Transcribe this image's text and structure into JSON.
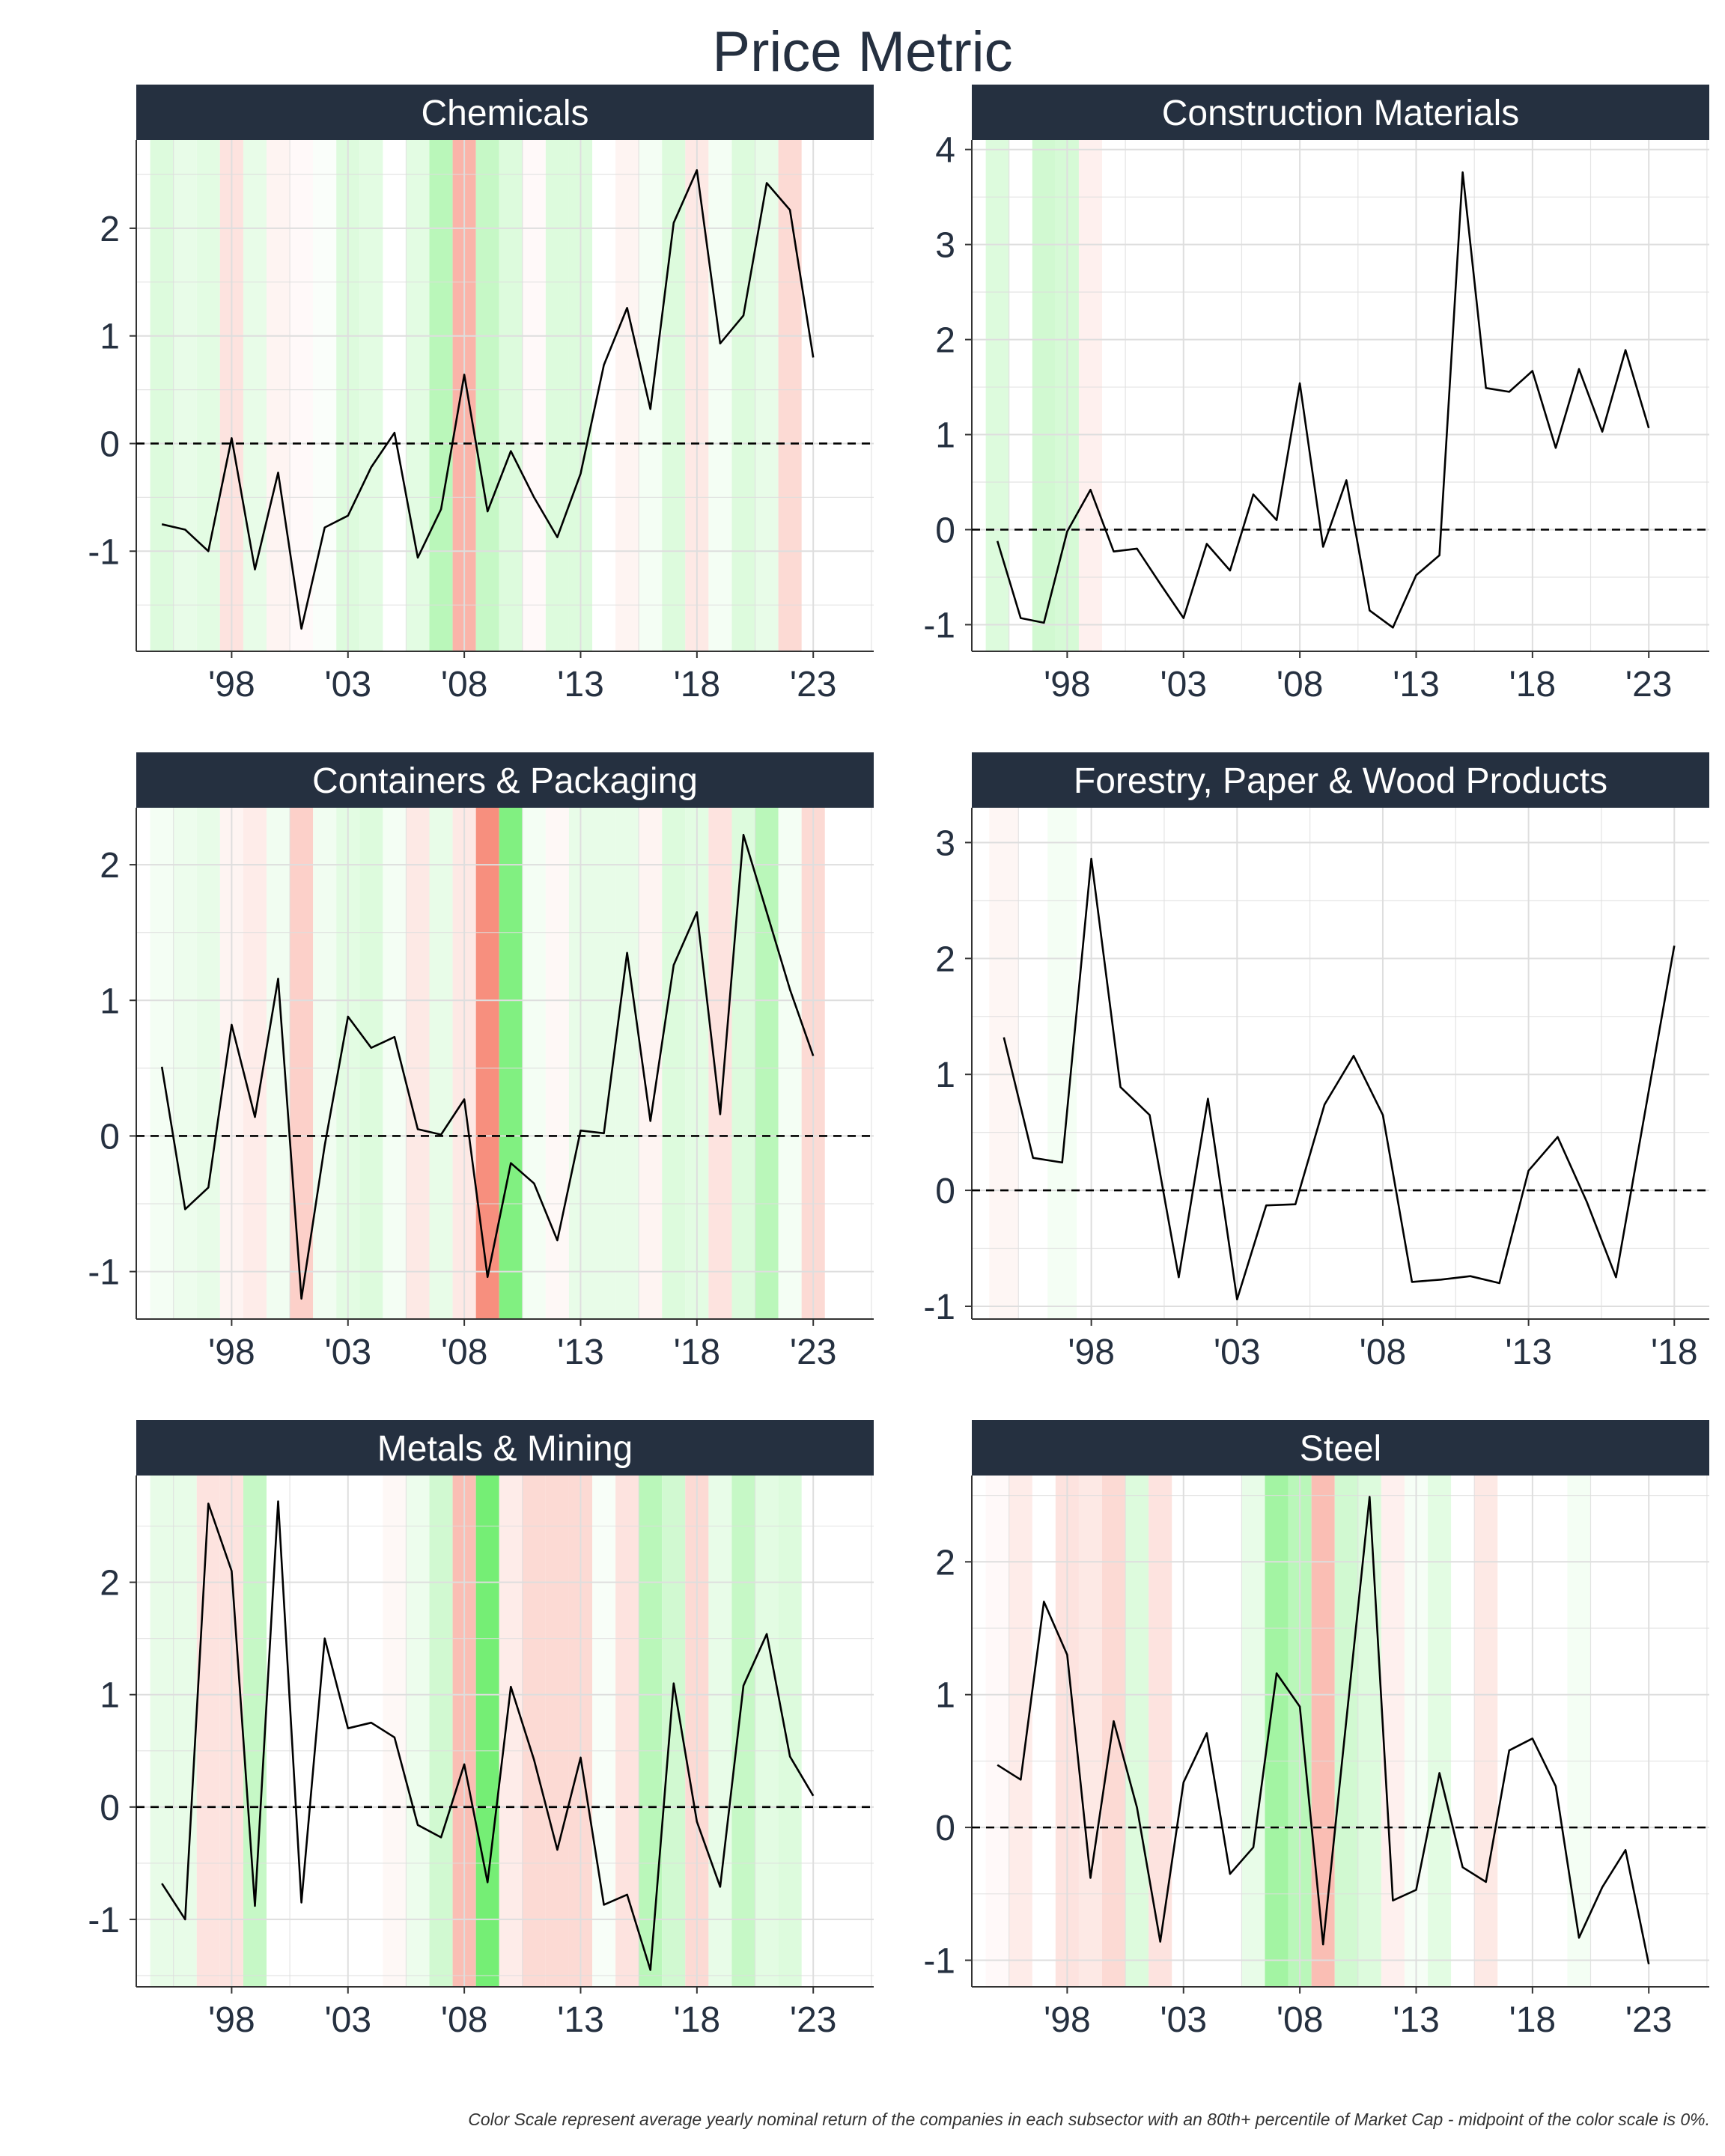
{
  "title": "Price Metric",
  "caption": "Color Scale represent average yearly nominal return of the companies in each subsector with an 80th+ percentile of Market Cap - midpoint of the color scale is 0%.",
  "colors": {
    "strip_bg": "#253040",
    "strip_text": "#ffffff",
    "line": "#000000",
    "grid": "#dedede",
    "axis_text": "#253040",
    "positive": "#00e000",
    "negative": "#f03010"
  },
  "chart_data": [
    {
      "type": "line",
      "title": "Chemicals",
      "xlim": [
        1993.9,
        2025.6
      ],
      "ylim": [
        -1.93,
        2.82
      ],
      "yticks": [
        -1,
        0,
        1,
        2
      ],
      "ytick_labels": [
        "-1",
        "0",
        "1",
        "2"
      ],
      "xticks": [
        1998,
        2003,
        2008,
        2013,
        2018,
        2023
      ],
      "xtick_labels": [
        "'98",
        "'03",
        "'08",
        "'13",
        "'18",
        "'23"
      ],
      "x": [
        1995,
        1996,
        1997,
        1998,
        1999,
        2000,
        2001,
        2002,
        2003,
        2004,
        2005,
        2006,
        2007,
        2008,
        2009,
        2010,
        2011,
        2012,
        2013,
        2014,
        2015,
        2016,
        2017,
        2018,
        2019,
        2020,
        2021,
        2022,
        2023
      ],
      "y": [
        -0.75,
        -0.8,
        -1.0,
        0.05,
        -1.17,
        -0.27,
        -1.72,
        -0.78,
        -0.67,
        -0.22,
        0.1,
        -1.06,
        -0.61,
        0.64,
        -0.63,
        -0.07,
        -0.5,
        -0.87,
        -0.28,
        0.73,
        1.26,
        0.32,
        2.05,
        2.54,
        0.93,
        1.19,
        2.42,
        2.17,
        0.8
      ],
      "band_returns": [
        0.15,
        0.1,
        0.12,
        -0.15,
        0.1,
        -0.06,
        -0.03,
        0.02,
        0.15,
        0.12,
        0.0,
        0.12,
        0.3,
        -0.4,
        0.25,
        0.15,
        -0.03,
        0.15,
        0.15,
        0.0,
        -0.06,
        0.05,
        0.15,
        -0.12,
        0.05,
        0.15,
        0.1,
        -0.2,
        0.0
      ]
    },
    {
      "type": "line",
      "title": "Construction Materials",
      "xlim": [
        1993.9,
        2025.6
      ],
      "ylim": [
        -1.28,
        4.1
      ],
      "yticks": [
        -1,
        0,
        1,
        2,
        3,
        4
      ],
      "ytick_labels": [
        "-1",
        "0",
        "1",
        "2",
        "3",
        "4"
      ],
      "xticks": [
        1998,
        2003,
        2008,
        2013,
        2018,
        2023
      ],
      "xtick_labels": [
        "'98",
        "'03",
        "'08",
        "'13",
        "'18",
        "'23"
      ],
      "x": [
        1995,
        1996,
        1997,
        1998,
        1999,
        2000,
        2001,
        2002,
        2003,
        2004,
        2005,
        2006,
        2007,
        2008,
        2009,
        2010,
        2011,
        2012,
        2013,
        2014,
        2015,
        2016,
        2017,
        2018,
        2019,
        2020,
        2021,
        2022,
        2023
      ],
      "y": [
        -0.12,
        -0.93,
        -0.98,
        -0.02,
        0.42,
        -0.23,
        -0.2,
        -0.57,
        -0.93,
        -0.15,
        -0.43,
        0.37,
        0.1,
        1.54,
        -0.18,
        0.52,
        -0.85,
        -1.03,
        -0.48,
        -0.27,
        3.76,
        1.49,
        1.45,
        1.67,
        0.86,
        1.69,
        1.03,
        1.89,
        1.07
      ],
      "band_returns": [
        0.15,
        0.0,
        0.2,
        0.18,
        -0.08,
        0,
        0,
        0,
        0,
        0,
        0,
        0,
        0,
        0,
        0,
        0,
        0,
        0,
        0,
        0,
        0,
        0,
        0,
        0,
        0,
        0,
        0,
        0,
        0
      ]
    },
    {
      "type": "line",
      "title": "Containers & Packaging",
      "xlim": [
        1993.9,
        2025.6
      ],
      "ylim": [
        -1.35,
        2.42
      ],
      "yticks": [
        -1,
        0,
        1,
        2
      ],
      "ytick_labels": [
        "-1",
        "0",
        "1",
        "2"
      ],
      "xticks": [
        1998,
        2003,
        2008,
        2013,
        2018,
        2023
      ],
      "xtick_labels": [
        "'98",
        "'03",
        "'08",
        "'13",
        "'18",
        "'23"
      ],
      "x": [
        1995,
        1996,
        1997,
        1998,
        1999,
        2000,
        2001,
        2002,
        2003,
        2004,
        2005,
        2006,
        2007,
        2008,
        2009,
        2010,
        2011,
        2012,
        2013,
        2014,
        2015,
        2016,
        2017,
        2018,
        2019,
        2020,
        2021,
        2022,
        2023
      ],
      "y": [
        0.51,
        -0.54,
        -0.38,
        0.82,
        0.14,
        1.16,
        -1.2,
        -0.07,
        0.88,
        0.65,
        0.73,
        0.05,
        0.01,
        0.27,
        -1.04,
        -0.2,
        -0.35,
        -0.77,
        0.04,
        0.02,
        1.35,
        0.11,
        1.26,
        1.65,
        0.16,
        2.22,
        1.65,
        1.08,
        0.59
      ],
      "band_returns": [
        0.05,
        0.08,
        0.1,
        -0.06,
        -0.1,
        0.06,
        -0.25,
        0.06,
        0.12,
        0.15,
        0.05,
        -0.12,
        0.1,
        -0.12,
        -0.6,
        0.55,
        0.05,
        -0.04,
        0.1,
        0.1,
        0.1,
        -0.06,
        0.15,
        0.12,
        -0.15,
        0.15,
        0.3,
        0.05,
        -0.2
      ]
    },
    {
      "type": "line",
      "title": "Forestry, Paper & Wood Products",
      "xlim": [
        1993.9,
        2019.2
      ],
      "ylim": [
        -1.11,
        3.3
      ],
      "yticks": [
        -1,
        0,
        1,
        2,
        3
      ],
      "ytick_labels": [
        "-1",
        "0",
        "1",
        "2",
        "3"
      ],
      "xticks": [
        1998,
        2003,
        2008,
        2013,
        2018
      ],
      "xtick_labels": [
        "'98",
        "'03",
        "'08",
        "'13",
        "'18"
      ],
      "x": [
        1995,
        1996,
        1997,
        1998,
        1999,
        2000,
        2001,
        2002,
        2003,
        2004,
        2005,
        2006,
        2007,
        2008,
        2009,
        2010,
        2011,
        2012,
        2013,
        2014,
        2015,
        2016,
        2017,
        2018
      ],
      "y": [
        1.32,
        0.28,
        0.24,
        2.86,
        0.89,
        0.65,
        -0.75,
        0.79,
        -0.94,
        -0.13,
        -0.12,
        0.74,
        1.16,
        0.65,
        -0.79,
        -0.77,
        -0.74,
        -0.8,
        0.17,
        0.46,
        -0.1,
        -0.75,
        0.68,
        2.11
      ],
      "band_returns": [
        -0.05,
        0.0,
        0.05,
        0,
        0,
        0,
        0,
        0,
        0,
        0,
        0,
        0,
        0,
        0,
        0,
        0,
        0,
        0,
        0,
        0,
        0,
        0,
        0,
        0
      ]
    },
    {
      "type": "line",
      "title": "Metals & Mining",
      "xlim": [
        1993.9,
        2025.6
      ],
      "ylim": [
        -1.6,
        2.95
      ],
      "yticks": [
        -1,
        0,
        1,
        2
      ],
      "ytick_labels": [
        "-1",
        "0",
        "1",
        "2"
      ],
      "xticks": [
        1998,
        2003,
        2008,
        2013,
        2018,
        2023
      ],
      "xtick_labels": [
        "'98",
        "'03",
        "'08",
        "'13",
        "'18",
        "'23"
      ],
      "x": [
        1995,
        1996,
        1997,
        1998,
        1999,
        2000,
        2001,
        2002,
        2003,
        2004,
        2005,
        2006,
        2007,
        2008,
        2009,
        2010,
        2011,
        2012,
        2013,
        2014,
        2015,
        2016,
        2017,
        2018,
        2019,
        2020,
        2021,
        2022,
        2023
      ],
      "y": [
        -0.68,
        -1.0,
        2.7,
        2.1,
        -0.88,
        2.72,
        -0.85,
        1.5,
        0.7,
        0.75,
        0.62,
        -0.16,
        -0.27,
        0.38,
        -0.67,
        1.07,
        0.42,
        -0.38,
        0.44,
        -0.87,
        -0.78,
        -1.45,
        1.1,
        -0.13,
        -0.71,
        1.08,
        1.54,
        0.45,
        0.1
      ],
      "band_returns": [
        0.1,
        0.1,
        -0.15,
        -0.15,
        0.25,
        0.0,
        0.0,
        0.0,
        0.0,
        0.0,
        -0.04,
        0.08,
        0.2,
        -0.35,
        0.6,
        -0.1,
        -0.2,
        -0.2,
        -0.2,
        0.03,
        -0.15,
        0.3,
        0.2,
        -0.2,
        0.1,
        0.25,
        0.12,
        0.15,
        0.0
      ]
    },
    {
      "type": "line",
      "title": "Steel",
      "xlim": [
        1993.9,
        2025.6
      ],
      "ylim": [
        -1.2,
        2.65
      ],
      "yticks": [
        -1,
        0,
        1,
        2
      ],
      "ytick_labels": [
        "-1",
        "0",
        "1",
        "2"
      ],
      "xticks": [
        1998,
        2003,
        2008,
        2013,
        2018,
        2023
      ],
      "xtick_labels": [
        "'98",
        "'03",
        "'08",
        "'13",
        "'18",
        "'23"
      ],
      "x": [
        1995,
        1996,
        1997,
        1998,
        1999,
        2000,
        2001,
        2002,
        2003,
        2004,
        2005,
        2006,
        2007,
        2008,
        2009,
        2010,
        2011,
        2012,
        2013,
        2014,
        2015,
        2016,
        2017,
        2018,
        2019,
        2020,
        2021,
        2022,
        2023
      ],
      "y": [
        0.47,
        0.36,
        1.7,
        1.3,
        -0.38,
        0.8,
        0.15,
        -0.86,
        0.34,
        0.71,
        -0.35,
        -0.15,
        1.16,
        0.91,
        -0.88,
        0.81,
        2.49,
        -0.55,
        -0.47,
        0.41,
        -0.3,
        -0.41,
        0.58,
        0.67,
        0.31,
        -0.83,
        -0.45,
        -0.17,
        -1.03
      ],
      "band_returns": [
        -0.03,
        -0.1,
        0.0,
        -0.15,
        -0.12,
        -0.2,
        0.15,
        -0.15,
        0.0,
        0.0,
        0.0,
        0.1,
        0.4,
        0.3,
        -0.35,
        0.2,
        0.15,
        -0.08,
        0.04,
        0.12,
        0.0,
        -0.12,
        0.0,
        0.0,
        0.0,
        0.05,
        0.0,
        0.0,
        0.0
      ]
    }
  ]
}
